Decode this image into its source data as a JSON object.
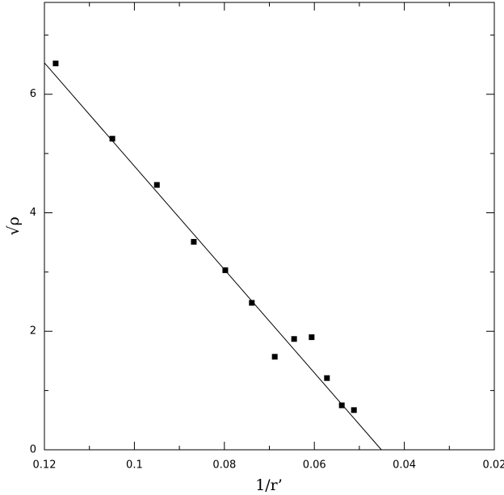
{
  "chart_data": {
    "type": "scatter",
    "x_label": "1/r’",
    "y_label": "√ρ",
    "xlim": [
      0.12,
      0.02
    ],
    "ylim": [
      0,
      7.55
    ],
    "xticks": [
      0.12,
      0.1,
      0.08,
      0.06,
      0.04,
      0.02
    ],
    "xminor": [
      0.11,
      0.09,
      0.07,
      0.05,
      0.03
    ],
    "yticks": [
      0,
      2,
      4,
      6
    ],
    "yminor": [
      1,
      3,
      5,
      7
    ],
    "series": [
      {
        "color": "#000000",
        "marker": "square",
        "x": [
          0.1175,
          0.1049,
          0.095,
          0.0868,
          0.0798,
          0.0739,
          0.0688,
          0.0645,
          0.0606,
          0.0572,
          0.0539,
          0.0512
        ],
        "values": [
          6.52,
          5.25,
          4.47,
          3.51,
          3.03,
          2.48,
          1.57,
          1.87,
          1.9,
          1.21,
          0.75,
          0.67
        ]
      },
      {
        "color": "#000000",
        "marker": "line",
        "x": [
          0.12,
          0.0451
        ],
        "values": [
          6.53,
          0
        ]
      }
    ]
  }
}
